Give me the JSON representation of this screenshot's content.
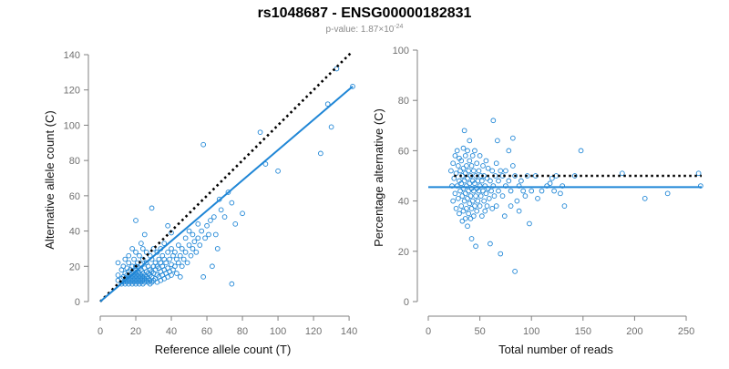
{
  "title": "rs1048687 - ENSG00000182831",
  "subtitle": {
    "prefix": "p-value: 1.87×10",
    "exponent": "-24"
  },
  "colors": {
    "points": "#1f86d6",
    "fit_line": "#1f86d6",
    "reference_line": "#000000",
    "axis": "#808080",
    "tick_text": "#707070"
  },
  "chart_data": [
    {
      "type": "scatter",
      "xlabel": "Reference allele count (T)",
      "ylabel": "Alternative allele count (C)",
      "xlim": [
        0,
        142
      ],
      "ylim": [
        0,
        140
      ],
      "xticks": [
        0,
        20,
        40,
        60,
        80,
        100,
        120,
        140
      ],
      "yticks": [
        0,
        20,
        40,
        60,
        80,
        100,
        120,
        140
      ],
      "grid": false,
      "reference_line": {
        "style": "dotted",
        "from": [
          0,
          0
        ],
        "to": [
          141,
          141
        ]
      },
      "fit_line": {
        "style": "solid",
        "from": [
          0,
          0
        ],
        "to": [
          142,
          122
        ]
      },
      "points": [
        [
          10,
          12
        ],
        [
          10,
          15
        ],
        [
          10,
          22
        ],
        [
          12,
          10
        ],
        [
          12,
          13
        ],
        [
          12,
          18
        ],
        [
          13,
          11
        ],
        [
          13,
          14
        ],
        [
          13,
          20
        ],
        [
          14,
          10
        ],
        [
          14,
          12
        ],
        [
          14,
          16
        ],
        [
          14,
          24
        ],
        [
          15,
          11
        ],
        [
          15,
          13
        ],
        [
          15,
          15
        ],
        [
          15,
          19
        ],
        [
          16,
          10
        ],
        [
          16,
          12
        ],
        [
          16,
          14
        ],
        [
          16,
          17
        ],
        [
          16,
          22
        ],
        [
          16,
          26
        ],
        [
          17,
          11
        ],
        [
          17,
          13
        ],
        [
          17,
          15
        ],
        [
          17,
          18
        ],
        [
          18,
          10
        ],
        [
          18,
          12
        ],
        [
          18,
          14
        ],
        [
          18,
          16
        ],
        [
          18,
          20
        ],
        [
          18,
          30
        ],
        [
          19,
          11
        ],
        [
          19,
          13
        ],
        [
          19,
          15
        ],
        [
          19,
          17
        ],
        [
          19,
          24
        ],
        [
          20,
          10
        ],
        [
          20,
          12
        ],
        [
          20,
          14
        ],
        [
          20,
          16
        ],
        [
          20,
          18
        ],
        [
          20,
          20
        ],
        [
          20,
          28
        ],
        [
          20,
          46
        ],
        [
          21,
          11
        ],
        [
          21,
          13
        ],
        [
          21,
          15
        ],
        [
          21,
          17
        ],
        [
          21,
          22
        ],
        [
          22,
          10
        ],
        [
          22,
          12
        ],
        [
          22,
          14
        ],
        [
          22,
          16
        ],
        [
          22,
          19
        ],
        [
          22,
          26
        ],
        [
          23,
          11
        ],
        [
          23,
          13
        ],
        [
          23,
          15
        ],
        [
          23,
          18
        ],
        [
          23,
          21
        ],
        [
          23,
          33
        ],
        [
          24,
          10
        ],
        [
          24,
          12
        ],
        [
          24,
          14
        ],
        [
          24,
          16
        ],
        [
          24,
          24
        ],
        [
          24,
          30
        ],
        [
          25,
          11
        ],
        [
          25,
          13
        ],
        [
          25,
          15
        ],
        [
          25,
          19
        ],
        [
          25,
          38
        ],
        [
          26,
          12
        ],
        [
          26,
          14
        ],
        [
          26,
          17
        ],
        [
          26,
          22
        ],
        [
          26,
          28
        ],
        [
          27,
          11
        ],
        [
          27,
          13
        ],
        [
          27,
          16
        ],
        [
          27,
          20
        ],
        [
          28,
          10
        ],
        [
          28,
          12
        ],
        [
          28,
          15
        ],
        [
          28,
          18
        ],
        [
          28,
          26
        ],
        [
          29,
          11
        ],
        [
          29,
          14
        ],
        [
          29,
          17
        ],
        [
          29,
          24
        ],
        [
          29,
          53
        ],
        [
          30,
          12
        ],
        [
          30,
          16
        ],
        [
          30,
          20
        ],
        [
          30,
          30
        ],
        [
          31,
          13
        ],
        [
          31,
          18
        ],
        [
          31,
          22
        ],
        [
          32,
          11
        ],
        [
          32,
          15
        ],
        [
          32,
          20
        ],
        [
          32,
          28
        ],
        [
          33,
          14
        ],
        [
          33,
          19
        ],
        [
          33,
          24
        ],
        [
          34,
          12
        ],
        [
          34,
          17
        ],
        [
          34,
          22
        ],
        [
          34,
          30
        ],
        [
          35,
          15
        ],
        [
          35,
          20
        ],
        [
          35,
          26
        ],
        [
          36,
          13
        ],
        [
          36,
          18
        ],
        [
          36,
          24
        ],
        [
          36,
          33
        ],
        [
          37,
          16
        ],
        [
          37,
          22
        ],
        [
          38,
          14
        ],
        [
          38,
          19
        ],
        [
          38,
          28
        ],
        [
          38,
          43
        ],
        [
          39,
          17
        ],
        [
          39,
          24
        ],
        [
          40,
          15
        ],
        [
          40,
          21
        ],
        [
          40,
          30
        ],
        [
          40,
          39
        ],
        [
          41,
          18
        ],
        [
          41,
          26
        ],
        [
          42,
          20
        ],
        [
          42,
          28
        ],
        [
          43,
          16
        ],
        [
          43,
          24
        ],
        [
          44,
          22
        ],
        [
          44,
          32
        ],
        [
          45,
          14
        ],
        [
          45,
          26
        ],
        [
          46,
          20
        ],
        [
          46,
          30
        ],
        [
          47,
          24
        ],
        [
          48,
          28
        ],
        [
          48,
          36
        ],
        [
          49,
          22
        ],
        [
          50,
          32
        ],
        [
          50,
          40
        ],
        [
          51,
          26
        ],
        [
          52,
          30
        ],
        [
          52,
          38
        ],
        [
          53,
          34
        ],
        [
          54,
          28
        ],
        [
          55,
          36
        ],
        [
          55,
          44
        ],
        [
          56,
          32
        ],
        [
          57,
          40
        ],
        [
          58,
          14
        ],
        [
          58,
          89
        ],
        [
          59,
          36
        ],
        [
          60,
          43
        ],
        [
          61,
          38
        ],
        [
          62,
          46
        ],
        [
          63,
          20
        ],
        [
          64,
          48
        ],
        [
          65,
          38
        ],
        [
          66,
          30
        ],
        [
          67,
          58
        ],
        [
          68,
          52
        ],
        [
          70,
          48
        ],
        [
          72,
          62
        ],
        [
          74,
          56
        ],
        [
          74,
          10
        ],
        [
          76,
          44
        ],
        [
          80,
          50
        ],
        [
          90,
          96
        ],
        [
          93,
          78
        ],
        [
          100,
          74
        ],
        [
          124,
          84
        ],
        [
          128,
          112
        ],
        [
          130,
          99
        ],
        [
          133,
          132
        ],
        [
          142,
          122
        ]
      ]
    },
    {
      "type": "scatter",
      "xlabel": "Total number of reads",
      "ylabel": "Percentage alternative (C)",
      "xlim": [
        0,
        265
      ],
      "ylim": [
        0,
        100
      ],
      "xticks": [
        0,
        50,
        100,
        150,
        200,
        250
      ],
      "yticks": [
        0,
        20,
        40,
        60,
        80,
        100
      ],
      "grid": false,
      "reference_line": {
        "style": "dotted",
        "y": 50,
        "from_x": 25,
        "to_x": 265
      },
      "fit_line": {
        "style": "solid",
        "y": 45.5,
        "from_x": 0,
        "to_x": 265
      },
      "points": [
        [
          22,
          52
        ],
        [
          23,
          46
        ],
        [
          24,
          40
        ],
        [
          24,
          55
        ],
        [
          25,
          49
        ],
        [
          26,
          43
        ],
        [
          26,
          58
        ],
        [
          27,
          37
        ],
        [
          27,
          51
        ],
        [
          28,
          46
        ],
        [
          28,
          60
        ],
        [
          29,
          41
        ],
        [
          29,
          54
        ],
        [
          30,
          35
        ],
        [
          30,
          48
        ],
        [
          30,
          57
        ],
        [
          31,
          44
        ],
        [
          31,
          52
        ],
        [
          32,
          38
        ],
        [
          32,
          47
        ],
        [
          32,
          56
        ],
        [
          33,
          32
        ],
        [
          33,
          42
        ],
        [
          33,
          50
        ],
        [
          34,
          36
        ],
        [
          34,
          45
        ],
        [
          34,
          53
        ],
        [
          34,
          61
        ],
        [
          35,
          40
        ],
        [
          35,
          48
        ],
        [
          35,
          68
        ],
        [
          36,
          33
        ],
        [
          36,
          43
        ],
        [
          36,
          51
        ],
        [
          36,
          58
        ],
        [
          37,
          37
        ],
        [
          37,
          46
        ],
        [
          37,
          54
        ],
        [
          38,
          30
        ],
        [
          38,
          41
        ],
        [
          38,
          49
        ],
        [
          38,
          60
        ],
        [
          39,
          35
        ],
        [
          39,
          44
        ],
        [
          39,
          52
        ],
        [
          40,
          39
        ],
        [
          40,
          47
        ],
        [
          40,
          56
        ],
        [
          40,
          64
        ],
        [
          41,
          33
        ],
        [
          41,
          42
        ],
        [
          41,
          50
        ],
        [
          42,
          37
        ],
        [
          42,
          45
        ],
        [
          42,
          54
        ],
        [
          42,
          25
        ],
        [
          43,
          40
        ],
        [
          43,
          48
        ],
        [
          43,
          58
        ],
        [
          44,
          34
        ],
        [
          44,
          44
        ],
        [
          44,
          52
        ],
        [
          45,
          38
        ],
        [
          45,
          47
        ],
        [
          45,
          60
        ],
        [
          46,
          42
        ],
        [
          46,
          50
        ],
        [
          46,
          22
        ],
        [
          47,
          36
        ],
        [
          47,
          45
        ],
        [
          47,
          55
        ],
        [
          48,
          40
        ],
        [
          48,
          48
        ],
        [
          49,
          44
        ],
        [
          49,
          52
        ],
        [
          50,
          38
        ],
        [
          50,
          46
        ],
        [
          50,
          58
        ],
        [
          51,
          42
        ],
        [
          51,
          50
        ],
        [
          52,
          34
        ],
        [
          52,
          48
        ],
        [
          53,
          44
        ],
        [
          53,
          54
        ],
        [
          54,
          40
        ],
        [
          54,
          50
        ],
        [
          55,
          36
        ],
        [
          55,
          46
        ],
        [
          56,
          43
        ],
        [
          56,
          56
        ],
        [
          57,
          38
        ],
        [
          57,
          49
        ],
        [
          58,
          45
        ],
        [
          58,
          53
        ],
        [
          59,
          41
        ],
        [
          60,
          23
        ],
        [
          60,
          48
        ],
        [
          61,
          44
        ],
        [
          62,
          37
        ],
        [
          62,
          52
        ],
        [
          63,
          46
        ],
        [
          63,
          72
        ],
        [
          64,
          42
        ],
        [
          65,
          50
        ],
        [
          66,
          55
        ],
        [
          66,
          38
        ],
        [
          67,
          64
        ],
        [
          68,
          44
        ],
        [
          68,
          48
        ],
        [
          70,
          19
        ],
        [
          70,
          52
        ],
        [
          72,
          42
        ],
        [
          72,
          50
        ],
        [
          74,
          34
        ],
        [
          75,
          46
        ],
        [
          75,
          52
        ],
        [
          78,
          48
        ],
        [
          78,
          60
        ],
        [
          80,
          38
        ],
        [
          80,
          44
        ],
        [
          82,
          54
        ],
        [
          82,
          65
        ],
        [
          84,
          12
        ],
        [
          84,
          50
        ],
        [
          86,
          40
        ],
        [
          88,
          36
        ],
        [
          88,
          46
        ],
        [
          90,
          48
        ],
        [
          92,
          44
        ],
        [
          94,
          42
        ],
        [
          96,
          50
        ],
        [
          98,
          31
        ],
        [
          100,
          44
        ],
        [
          104,
          50
        ],
        [
          106,
          41
        ],
        [
          110,
          44
        ],
        [
          115,
          46
        ],
        [
          118,
          47
        ],
        [
          120,
          49
        ],
        [
          122,
          44
        ],
        [
          124,
          50
        ],
        [
          128,
          43
        ],
        [
          130,
          46
        ],
        [
          132,
          38
        ],
        [
          142,
          50
        ],
        [
          148,
          60
        ],
        [
          188,
          51
        ],
        [
          210,
          41
        ],
        [
          232,
          43
        ],
        [
          262,
          51
        ],
        [
          264,
          46
        ]
      ]
    }
  ]
}
